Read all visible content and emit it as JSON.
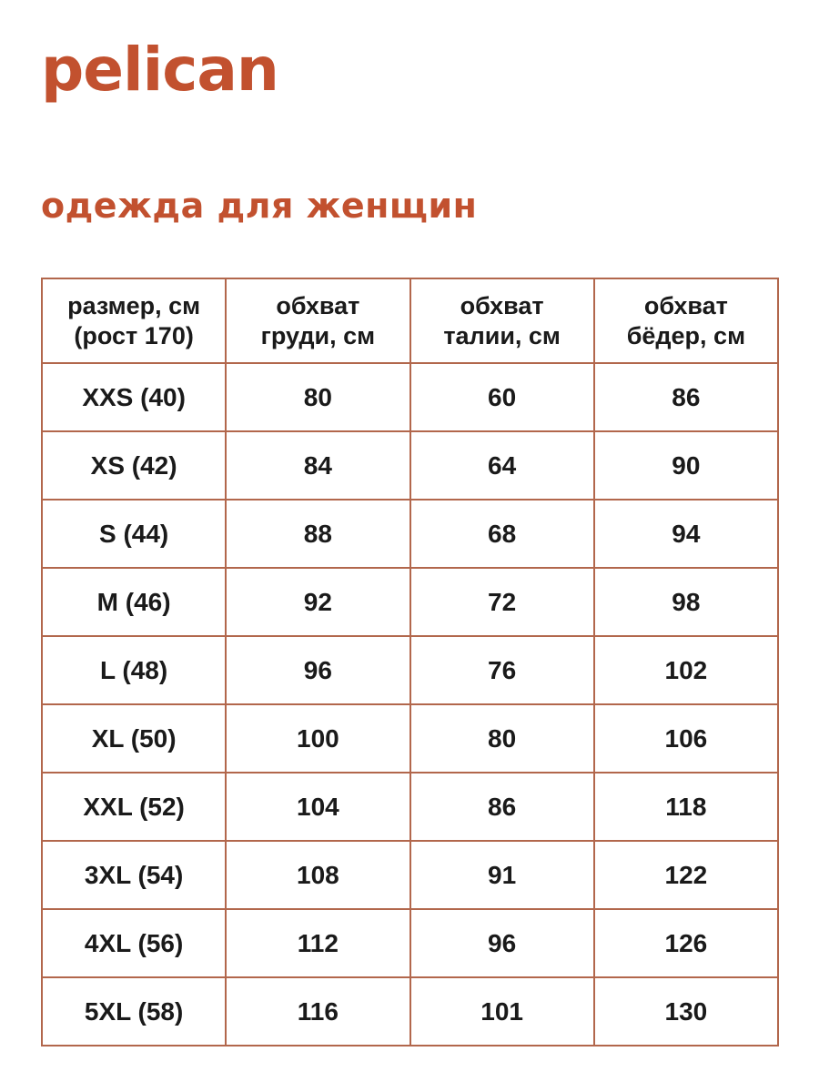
{
  "brand": {
    "logo_text": "pelican"
  },
  "page": {
    "title": "одежда для женщин"
  },
  "colors": {
    "accent": "#c2512f",
    "table_border": "#b2674c",
    "text": "#1a1a1a",
    "background": "#ffffff"
  },
  "table": {
    "headers": [
      {
        "line1": "размер, см",
        "line2": "(рост 170)"
      },
      {
        "line1": "обхват",
        "line2": "груди, см"
      },
      {
        "line1": "обхват",
        "line2": "талии, см"
      },
      {
        "line1": "обхват",
        "line2": "бёдер, см"
      }
    ],
    "rows": [
      {
        "size": "XXS (40)",
        "chest": "80",
        "waist": "60",
        "hips": "86"
      },
      {
        "size": "XS (42)",
        "chest": "84",
        "waist": "64",
        "hips": "90"
      },
      {
        "size": "S (44)",
        "chest": "88",
        "waist": "68",
        "hips": "94"
      },
      {
        "size": "M (46)",
        "chest": "92",
        "waist": "72",
        "hips": "98"
      },
      {
        "size": "L (48)",
        "chest": "96",
        "waist": "76",
        "hips": "102"
      },
      {
        "size": "XL (50)",
        "chest": "100",
        "waist": "80",
        "hips": "106"
      },
      {
        "size": "XXL (52)",
        "chest": "104",
        "waist": "86",
        "hips": "118"
      },
      {
        "size": "3XL (54)",
        "chest": "108",
        "waist": "91",
        "hips": "122"
      },
      {
        "size": "4XL (56)",
        "chest": "112",
        "waist": "96",
        "hips": "126"
      },
      {
        "size": "5XL (58)",
        "chest": "116",
        "waist": "101",
        "hips": "130"
      }
    ]
  }
}
